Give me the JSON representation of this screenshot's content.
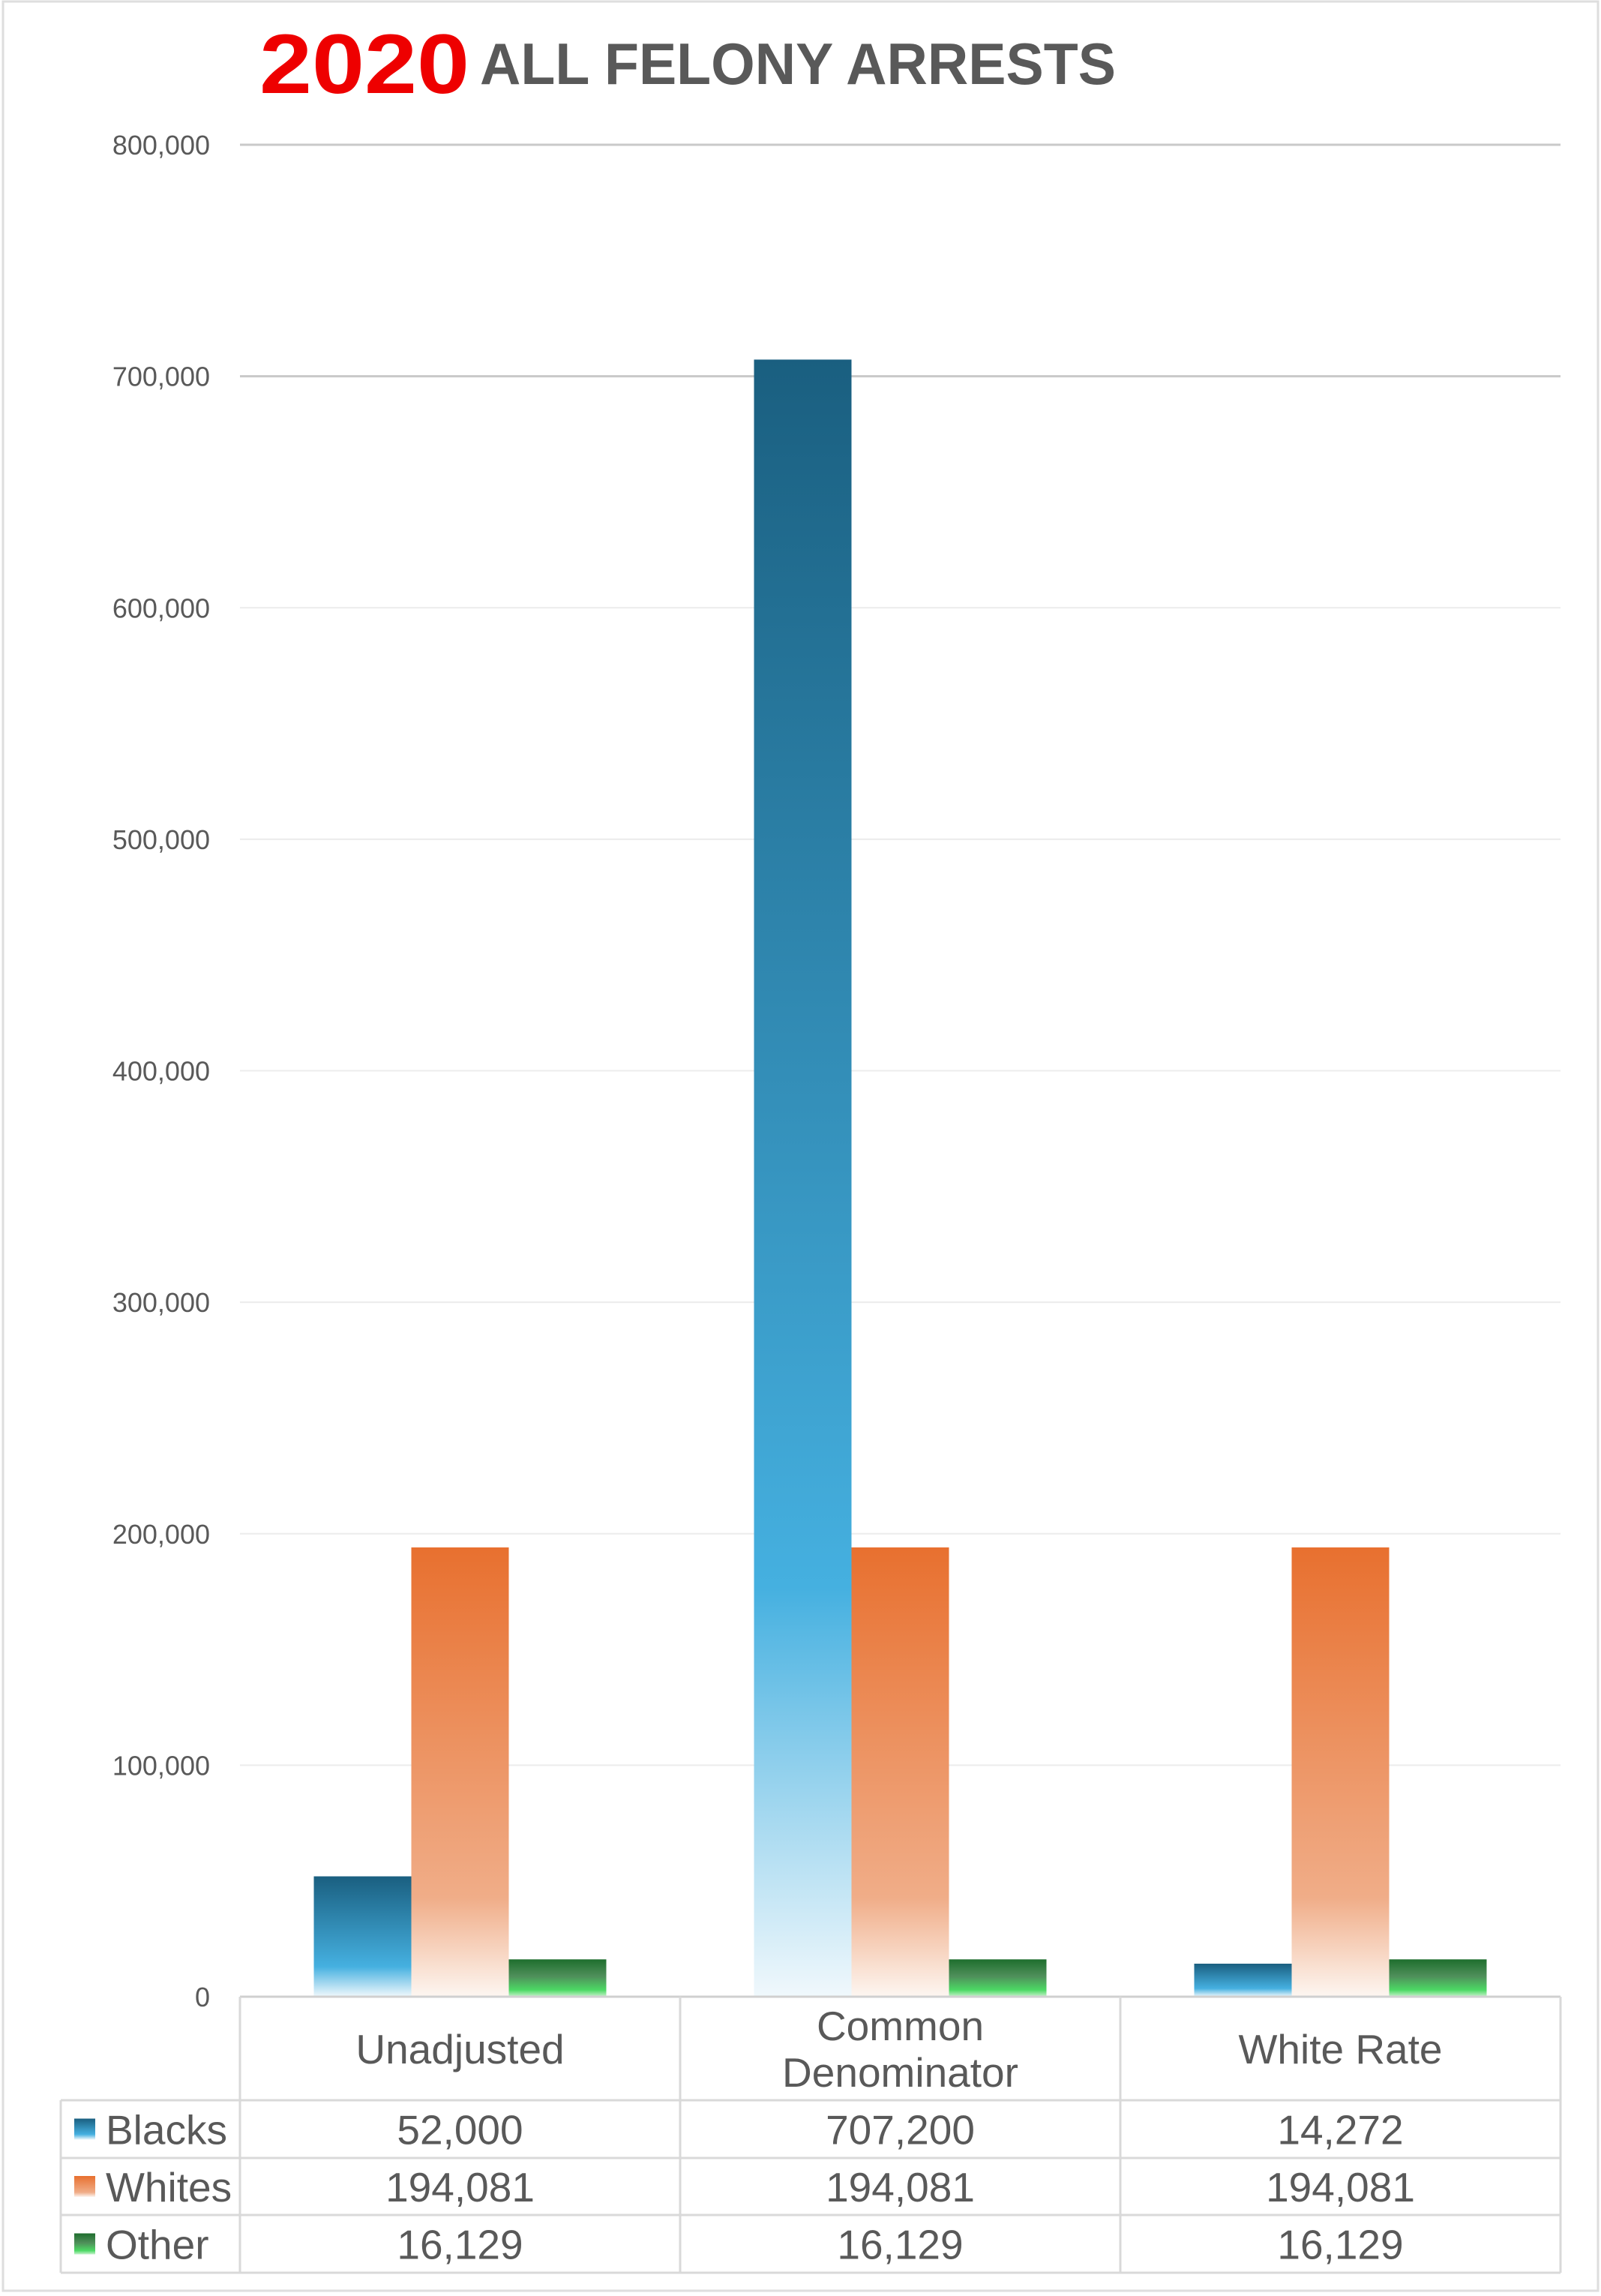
{
  "title": {
    "year": "2020",
    "text": "ALL FELONY ARRESTS",
    "year_color": "#ee0000",
    "text_color": "#595959"
  },
  "chart_data": {
    "type": "bar",
    "title": "2020 ALL FELONY ARRESTS",
    "xlabel": "",
    "ylabel": "",
    "categories": [
      "Unadjusted",
      "Common Denominator",
      "White Rate"
    ],
    "category_lines": [
      [
        "Unadjusted"
      ],
      [
        "Common",
        "Denominator"
      ],
      [
        "White Rate"
      ]
    ],
    "series": [
      {
        "name": "Blacks",
        "values": [
          52000,
          707200,
          14272
        ],
        "labels": [
          "52,000",
          "707,200",
          "14,272"
        ],
        "color": "#1a5f80",
        "color_mid": "#45b0e0",
        "color_end": "#f0f8fc"
      },
      {
        "name": "Whites",
        "values": [
          194081,
          194081,
          194081
        ],
        "labels": [
          "194,081",
          "194,081",
          "194,081"
        ],
        "color": "#e8702f",
        "color_mid": "#f0ad88",
        "color_end": "#fdf6f1"
      },
      {
        "name": "Other",
        "values": [
          16129,
          16129,
          16129
        ],
        "labels": [
          "16,129",
          "16,129",
          "16,129"
        ],
        "color": "#1e6e2e",
        "color_mid": "#4cd964",
        "color_end": "#c8f2cd"
      }
    ],
    "ylim": [
      0,
      800000
    ],
    "yticks": [
      0,
      100000,
      200000,
      300000,
      400000,
      500000,
      600000,
      700000,
      800000
    ],
    "ytick_labels": [
      "0",
      "100,000",
      "200,000",
      "300,000",
      "400,000",
      "500,000",
      "600,000",
      "700,000",
      "800,000"
    ],
    "grid": true,
    "legend": "data-table-below"
  }
}
